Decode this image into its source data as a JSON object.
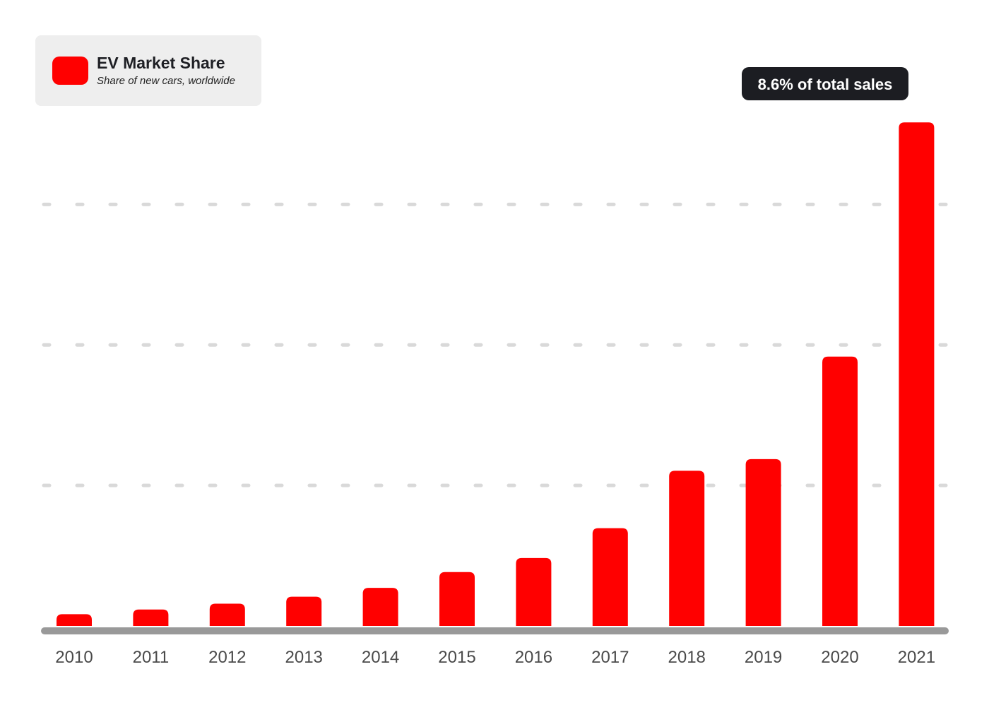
{
  "chart_data": {
    "type": "bar",
    "categories": [
      "2010",
      "2011",
      "2012",
      "2013",
      "2014",
      "2015",
      "2016",
      "2017",
      "2018",
      "2019",
      "2020",
      "2021"
    ],
    "series": [
      {
        "name": "EV Market Share",
        "values": [
          0.2,
          0.28,
          0.38,
          0.5,
          0.65,
          0.92,
          1.16,
          1.67,
          2.65,
          2.85,
          4.6,
          8.6
        ]
      }
    ],
    "legend": {
      "title": "EV Market Share",
      "subtitle": "Share of new cars, worldwide",
      "position": "top-left"
    },
    "annotation": {
      "category": "2021",
      "text": "8.6% of total sales"
    },
    "ylim": [
      0,
      9.4
    ],
    "gridlines": [
      2.4,
      4.8,
      7.2
    ],
    "grid": true,
    "colors": {
      "bar": "#ff0000",
      "axis": "#999999",
      "grid": "#d9d9d9",
      "legend_bg": "#eeeeee",
      "callout_bg": "#1c1d22"
    }
  }
}
